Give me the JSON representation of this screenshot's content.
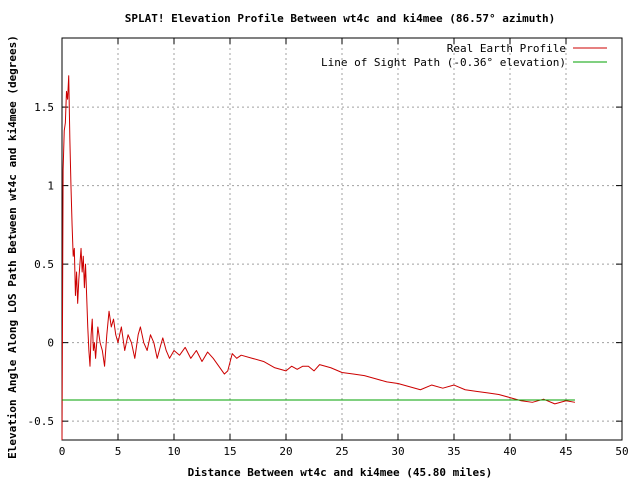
{
  "chart_data": {
    "type": "line",
    "title": "SPLAT! Elevation Profile Between wt4c and ki4mee (86.57° azimuth)",
    "xlabel": "Distance Between wt4c and ki4mee (45.80 miles)",
    "ylabel": "Elevation Angle Along LOS Path Between wt4c and ki4mee (degrees)",
    "xlim": [
      0,
      50
    ],
    "ylim": [
      -0.62,
      1.94
    ],
    "x_ticks": [
      0,
      5,
      10,
      15,
      20,
      25,
      30,
      35,
      40,
      45,
      50
    ],
    "x_tick_labels": [
      "0",
      "5",
      "10",
      "15",
      "20",
      "25",
      "30",
      "35",
      "40",
      "45",
      "50"
    ],
    "y_ticks": [
      -0.5,
      0,
      0.5,
      1,
      1.5
    ],
    "y_tick_labels": [
      "-0.5",
      "0",
      "0.5",
      "1",
      "1.5"
    ],
    "grid": true,
    "legend_position": "top-right",
    "series": [
      {
        "name": "Real Earth Profile",
        "color": "#cc0000",
        "x": [
          0,
          0.1,
          0.2,
          0.3,
          0.4,
          0.5,
          0.6,
          0.7,
          0.8,
          0.9,
          1.0,
          1.1,
          1.2,
          1.3,
          1.4,
          1.5,
          1.6,
          1.7,
          1.8,
          1.9,
          2.0,
          2.1,
          2.2,
          2.3,
          2.4,
          2.5,
          2.6,
          2.7,
          2.8,
          2.9,
          3.0,
          3.2,
          3.4,
          3.6,
          3.8,
          4.0,
          4.2,
          4.4,
          4.6,
          4.8,
          5.0,
          5.3,
          5.6,
          5.9,
          6.2,
          6.5,
          6.8,
          7.0,
          7.3,
          7.6,
          7.9,
          8.2,
          8.5,
          8.8,
          9.0,
          9.3,
          9.6,
          10.0,
          10.5,
          11.0,
          11.5,
          12.0,
          12.5,
          13.0,
          13.5,
          14.0,
          14.5,
          14.8,
          15.2,
          15.6,
          16.0,
          17.0,
          18.0,
          19.0,
          20.0,
          20.5,
          21.0,
          21.5,
          22.0,
          22.5,
          23.0,
          24.0,
          25.0,
          26.0,
          27.0,
          28.0,
          29.0,
          30.0,
          31.0,
          32.0,
          33.0,
          34.0,
          35.0,
          36.0,
          37.0,
          38.0,
          39.0,
          40.0,
          41.0,
          42.0,
          43.0,
          44.0,
          45.0,
          45.8
        ],
        "y": [
          -0.62,
          1.1,
          1.35,
          1.4,
          1.6,
          1.55,
          1.7,
          1.3,
          1.0,
          0.75,
          0.55,
          0.6,
          0.3,
          0.45,
          0.25,
          0.4,
          0.5,
          0.6,
          0.45,
          0.55,
          0.35,
          0.5,
          0.3,
          0.1,
          -0.05,
          -0.15,
          0.05,
          0.15,
          -0.05,
          0.0,
          -0.1,
          0.1,
          0.0,
          -0.05,
          -0.15,
          0.05,
          0.2,
          0.1,
          0.15,
          0.05,
          0.0,
          0.1,
          -0.05,
          0.05,
          0.0,
          -0.1,
          0.05,
          0.1,
          0.0,
          -0.05,
          0.05,
          0.0,
          -0.1,
          -0.02,
          0.03,
          -0.05,
          -0.1,
          -0.05,
          -0.08,
          -0.03,
          -0.1,
          -0.05,
          -0.12,
          -0.06,
          -0.1,
          -0.15,
          -0.2,
          -0.18,
          -0.07,
          -0.1,
          -0.08,
          -0.1,
          -0.12,
          -0.16,
          -0.18,
          -0.15,
          -0.17,
          -0.15,
          -0.15,
          -0.18,
          -0.14,
          -0.16,
          -0.19,
          -0.2,
          -0.21,
          -0.23,
          -0.25,
          -0.26,
          -0.28,
          -0.3,
          -0.27,
          -0.29,
          -0.27,
          -0.3,
          -0.31,
          -0.32,
          -0.33,
          -0.35,
          -0.37,
          -0.38,
          -0.36,
          -0.39,
          -0.37,
          -0.38
        ]
      },
      {
        "name": "Line of Sight Path (-0.36° elevation)",
        "color": "#00a000",
        "x": [
          0,
          45.8
        ],
        "y": [
          -0.365,
          -0.365
        ]
      }
    ]
  }
}
